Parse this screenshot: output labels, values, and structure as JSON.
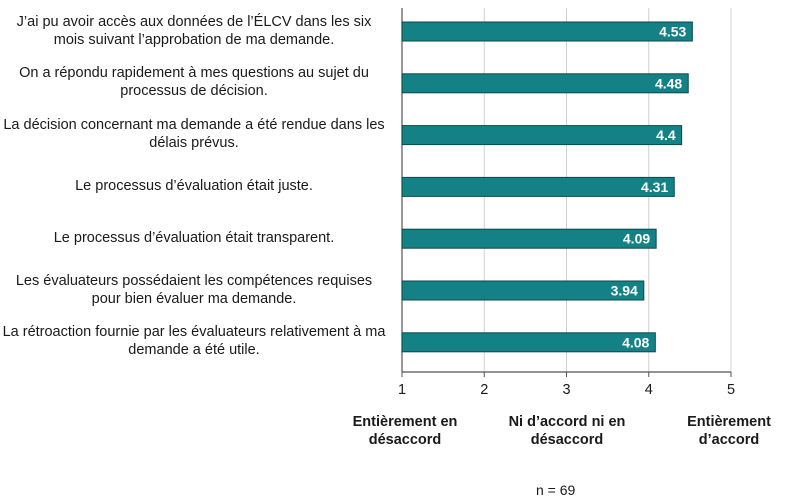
{
  "chart_data": {
    "type": "bar",
    "orientation": "horizontal",
    "categories": [
      "J’ai pu avoir accès aux données de l’ÉLCV dans les six mois suivant l’approbation de ma demande.",
      "On a répondu rapidement à mes questions au sujet du processus de décision.",
      "La décision concernant ma demande a été rendue dans les délais prévus.",
      "Le processus d’évaluation était juste.",
      "Le processus d’évaluation était transparent.",
      "Les évaluateurs possédaient les compétences requises pour bien évaluer ma demande.",
      "La rétroaction fournie par les évaluateurs relativement à ma demande a été utile."
    ],
    "values": [
      4.53,
      4.48,
      4.4,
      4.31,
      4.09,
      3.94,
      4.08
    ],
    "value_labels": [
      "4.53",
      "4.48",
      "4.4",
      "4.31",
      "4.09",
      "3.94",
      "4.08"
    ],
    "xlim": [
      1,
      5
    ],
    "xticks": [
      "1",
      "2",
      "3",
      "4",
      "5"
    ],
    "grid": true,
    "bar_color": "#138185",
    "anchors": {
      "low": "Entièrement en désaccord",
      "mid": "Ni d’accord ni en désaccord",
      "high": "Entièrement d’accord"
    },
    "note": "n = 69"
  }
}
